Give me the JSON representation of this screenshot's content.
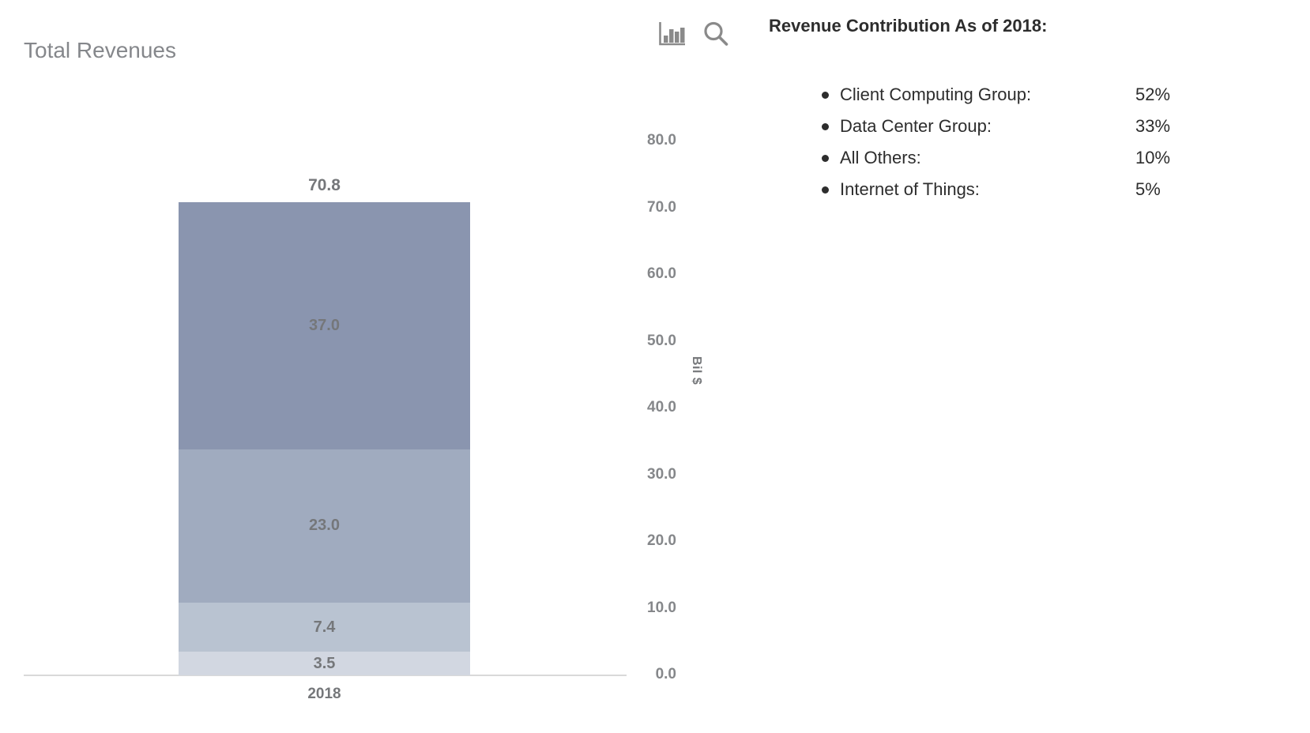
{
  "chart": {
    "title": "Total Revenues",
    "x_label": "2018",
    "total_label": "70.8",
    "y_axis": {
      "title": "Bil $",
      "tick_labels": [
        "80.0",
        "70.0",
        "60.0",
        "50.0",
        "40.0",
        "30.0",
        "20.0",
        "10.0",
        "0.0"
      ]
    },
    "segments": [
      {
        "name": "Client Computing Group",
        "label": "37.0",
        "value": 37.0,
        "color": "#8A95AF"
      },
      {
        "name": "Data Center Group",
        "label": "23.0",
        "value": 23.0,
        "color": "#A0ABBF"
      },
      {
        "name": "All Others",
        "label": "7.4",
        "value": 7.4,
        "color": "#B9C3D1"
      },
      {
        "name": "Internet of Things",
        "label": "3.5",
        "value": 3.5,
        "color": "#D2D7E1"
      }
    ]
  },
  "toolbar": {
    "icons": [
      "bar-chart-icon",
      "search-icon"
    ]
  },
  "panel": {
    "heading": "Revenue Contribution As of 2018:",
    "items": [
      {
        "label": "Client Computing Group:",
        "value": "52%"
      },
      {
        "label": "Data Center Group:",
        "value": "33%"
      },
      {
        "label": "All Others:",
        "value": "10%"
      },
      {
        "label": "Internet of Things:",
        "value": "5%"
      }
    ]
  },
  "colors": {
    "axis_line": "#D9D9D9",
    "value_label_text": "#75777A",
    "tick_text": "#85878A",
    "title_text": "#85878B",
    "panel_text": "#2D2D2D",
    "icon": "#8A8A8A"
  },
  "chart_data": {
    "type": "bar",
    "stacked": true,
    "title": "Total Revenues",
    "categories": [
      "2018"
    ],
    "series": [
      {
        "name": "Client Computing Group",
        "values": [
          37.0
        ]
      },
      {
        "name": "Data Center Group",
        "values": [
          23.0
        ]
      },
      {
        "name": "All Others",
        "values": [
          7.4
        ]
      },
      {
        "name": "Internet of Things",
        "values": [
          3.5
        ]
      }
    ],
    "totals": [
      70.8
    ],
    "xlabel": "",
    "ylabel": "Bil $",
    "ylim": [
      0.0,
      80.0
    ],
    "yticks": [
      0.0,
      10.0,
      20.0,
      30.0,
      40.0,
      50.0,
      60.0,
      70.0,
      80.0
    ],
    "y_axis_side": "right",
    "grid": false,
    "legend": false,
    "annotations": [
      "Revenue Contribution As of 2018:",
      "Client Computing Group: 52%",
      "Data Center Group: 33%",
      "All Others: 10%",
      "Internet of Things: 5%"
    ]
  }
}
